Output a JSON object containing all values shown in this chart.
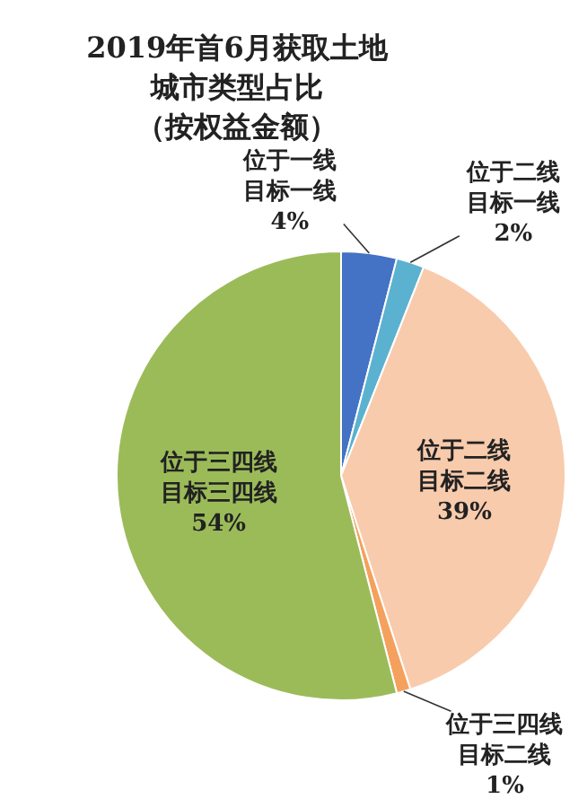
{
  "chart_data": {
    "type": "pie",
    "title": "2019年首6月获取土地城市类型占比",
    "subtitle": "（按权益金额）",
    "categories": [
      "位于一线目标一线",
      "位于二线目标一线",
      "位于二线目标二线",
      "位于三四线目标二线",
      "位于三四线目标三四线"
    ],
    "values": [
      4,
      2,
      39,
      1,
      54
    ],
    "value_labels": [
      "4%",
      "2%",
      "39%",
      "1%",
      "54%"
    ],
    "colors": [
      "#4472c4",
      "#5bb1d0",
      "#f8cbad",
      "#f4a15d",
      "#9bbb59"
    ]
  }
}
